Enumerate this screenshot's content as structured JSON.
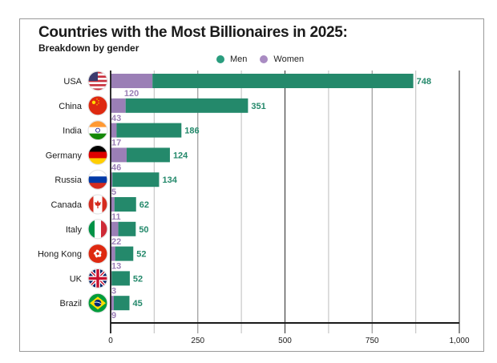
{
  "chart_data": {
    "type": "bar",
    "orientation": "horizontal",
    "stacked": true,
    "title": "Countries with the Most Billionaires in 2025:",
    "subtitle": "Breakdown by gender",
    "xlabel": "",
    "ylabel": "",
    "xlim": [
      0,
      1000
    ],
    "xticks": [
      0,
      250,
      500,
      750,
      1000
    ],
    "xtick_labels": [
      "0",
      "250",
      "500",
      "750",
      "1,000"
    ],
    "minor_gridlines": [
      125,
      375,
      625,
      875
    ],
    "grid": true,
    "legend_position": "top-center",
    "categories": [
      "USA",
      "China",
      "India",
      "Germany",
      "Russia",
      "Canada",
      "Italy",
      "Hong Kong",
      "UK",
      "Brazil"
    ],
    "flag_icons": [
      "usa-flag-icon",
      "china-flag-icon",
      "india-flag-icon",
      "germany-flag-icon",
      "russia-flag-icon",
      "canada-flag-icon",
      "italy-flag-icon",
      "hong-kong-flag-icon",
      "uk-flag-icon",
      "brazil-flag-icon"
    ],
    "series": [
      {
        "name": "Women",
        "color": "#9b7fb6",
        "values": [
          120,
          43,
          17,
          46,
          5,
          11,
          22,
          13,
          3,
          9
        ]
      },
      {
        "name": "Men",
        "color": "#24896b",
        "values": [
          748,
          351,
          186,
          124,
          134,
          62,
          50,
          52,
          52,
          45
        ]
      }
    ],
    "legend": [
      {
        "name": "Men",
        "color": "#2a9d7e"
      },
      {
        "name": "Women",
        "color": "#a98bc2"
      }
    ]
  }
}
